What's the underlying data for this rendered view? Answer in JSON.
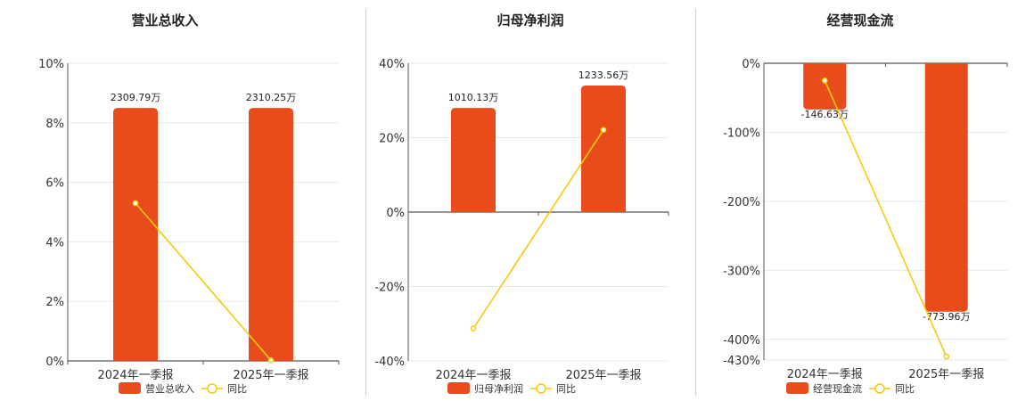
{
  "legend_yoy": "同比",
  "colors": {
    "bar": "#E84C1A",
    "line": "#F2CC0C",
    "grid": "#e5e9f0",
    "axis": "#555555"
  },
  "chart_data": [
    {
      "type": "bar",
      "title": "营业总收入",
      "categories": [
        "2024年一季报",
        "2025年一季报"
      ],
      "series": [
        {
          "name": "营业总收入",
          "kind": "bar",
          "values": [
            8.5,
            8.5
          ],
          "labels": [
            "2309.79万",
            "2310.25万"
          ]
        },
        {
          "name": "同比",
          "kind": "line",
          "values": [
            5.3,
            0.02
          ]
        }
      ],
      "yticks": [
        0,
        2,
        4,
        6,
        8,
        10
      ],
      "ylim": [
        0,
        10
      ],
      "yunit": "%"
    },
    {
      "type": "bar",
      "title": "归母净利润",
      "categories": [
        "2024年一季报",
        "2025年一季报"
      ],
      "series": [
        {
          "name": "归母净利润",
          "kind": "bar",
          "values": [
            28,
            34
          ],
          "labels": [
            "1010.13万",
            "1233.56万"
          ]
        },
        {
          "name": "同比",
          "kind": "line",
          "values": [
            -31.3,
            22.1
          ]
        }
      ],
      "yticks": [
        -40,
        -20,
        0,
        20,
        40
      ],
      "ylim": [
        -40,
        40
      ],
      "yunit": "%"
    },
    {
      "type": "bar",
      "title": "经营现金流",
      "categories": [
        "2024年一季报",
        "2025年一季报"
      ],
      "series": [
        {
          "name": "经营现金流",
          "kind": "bar",
          "values": [
            -67,
            -360
          ],
          "labels": [
            "-146.63万",
            "-773.96万"
          ]
        },
        {
          "name": "同比",
          "kind": "line",
          "values": [
            -25,
            -425
          ]
        }
      ],
      "yticks": [
        0,
        -100,
        -200,
        -300,
        -400,
        -430
      ],
      "ylim": [
        -430,
        0
      ],
      "yunit": "%"
    }
  ]
}
